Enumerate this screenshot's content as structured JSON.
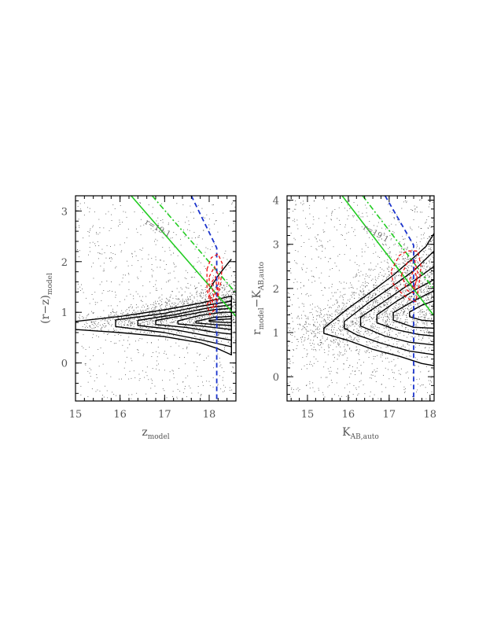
{
  "chart_data": [
    {
      "type": "scatter",
      "id": "left",
      "xlabel_main": "z",
      "xlabel_sub": "model",
      "ylabel_main": "(r−z)",
      "ylabel_sub": "model",
      "xlim": [
        15,
        18.6
      ],
      "ylim": [
        -0.75,
        3.3
      ],
      "x_ticks": [
        15,
        16,
        17,
        18
      ],
      "y_ticks": [
        0,
        1,
        2,
        3
      ],
      "annotation": "r=19.1",
      "annotation_at": [
        16.55,
        2.75
      ],
      "annotation_angle": 29,
      "scatter": {
        "color": "#555555",
        "points": 2100,
        "band_sigma": 0.13,
        "band_center": [
          [
            15,
            0.75
          ],
          [
            16,
            0.85
          ],
          [
            17,
            0.95
          ],
          [
            18,
            1.05
          ],
          [
            18.6,
            1.1
          ]
        ],
        "band_spread": [
          [
            15,
            0.12
          ],
          [
            16,
            0.16
          ],
          [
            17,
            0.24
          ],
          [
            18,
            0.42
          ],
          [
            18.6,
            0.55
          ]
        ],
        "field_fraction": 0.3,
        "field_y": [
          -0.7,
          3.2
        ]
      },
      "contours": [
        {
          "color": "#000000",
          "points": [
            [
              15,
              0.82
            ],
            [
              16,
              0.92
            ],
            [
              17,
              1.05
            ],
            [
              17.8,
              1.18
            ],
            [
              18.2,
              1.26
            ],
            [
              18.5,
              1.32
            ],
            [
              18.5,
              0.16
            ],
            [
              18.2,
              0.28
            ],
            [
              17.8,
              0.4
            ],
            [
              17,
              0.52
            ],
            [
              16,
              0.6
            ],
            [
              15,
              0.66
            ]
          ]
        },
        {
          "color": "#000000",
          "points": [
            [
              15.9,
              0.85
            ],
            [
              17,
              0.98
            ],
            [
              17.8,
              1.12
            ],
            [
              18.5,
              1.22
            ],
            [
              18.5,
              0.32
            ],
            [
              17.8,
              0.46
            ],
            [
              17,
              0.6
            ],
            [
              15.9,
              0.72
            ]
          ]
        },
        {
          "color": "#000000",
          "points": [
            [
              16.4,
              0.84
            ],
            [
              17.2,
              0.95
            ],
            [
              18,
              1.09
            ],
            [
              18.5,
              1.15
            ],
            [
              18.5,
              0.45
            ],
            [
              18,
              0.53
            ],
            [
              17.2,
              0.66
            ],
            [
              16.4,
              0.74
            ]
          ]
        },
        {
          "color": "#000000",
          "points": [
            [
              16.8,
              0.84
            ],
            [
              17.5,
              0.95
            ],
            [
              18.1,
              1.05
            ],
            [
              18.5,
              1.08
            ],
            [
              18.5,
              0.57
            ],
            [
              18.1,
              0.61
            ],
            [
              17.5,
              0.7
            ],
            [
              16.8,
              0.76
            ]
          ]
        },
        {
          "color": "#000000",
          "points": [
            [
              17.3,
              0.83
            ],
            [
              17.8,
              0.94
            ],
            [
              18.3,
              1.0
            ],
            [
              18.5,
              1.0
            ],
            [
              18.5,
              0.66
            ],
            [
              18.3,
              0.68
            ],
            [
              17.8,
              0.73
            ],
            [
              17.3,
              0.77
            ]
          ]
        },
        {
          "color": "#000000",
          "points": [
            [
              17.7,
              0.82
            ],
            [
              18.1,
              0.9
            ],
            [
              18.5,
              0.92
            ],
            [
              18.5,
              0.74
            ],
            [
              18.1,
              0.76
            ],
            [
              17.7,
              0.79
            ]
          ]
        },
        {
          "color": "#000000",
          "points": [
            [
              18.0,
              0.84
            ],
            [
              18.3,
              0.86
            ],
            [
              18.5,
              0.87
            ],
            [
              18.5,
              0.8
            ],
            [
              18.3,
              0.8
            ],
            [
              18.0,
              0.82
            ]
          ]
        },
        {
          "color": "#000000",
          "open": true,
          "points": [
            [
              18.0,
              1.45
            ],
            [
              18.2,
              1.72
            ],
            [
              18.45,
              2.0
            ],
            [
              18.5,
              2.05
            ]
          ]
        }
      ],
      "red_contours": [
        {
          "color": "#ee1111",
          "dash": "4 3",
          "points": [
            [
              17.95,
              1.85
            ],
            [
              18.05,
              2.08
            ],
            [
              18.2,
              2.15
            ],
            [
              18.3,
              1.95
            ],
            [
              18.25,
              1.55
            ],
            [
              18.15,
              1.1
            ],
            [
              18.05,
              1.1
            ],
            [
              17.95,
              1.45
            ]
          ]
        },
        {
          "color": "#ee1111",
          "dash": "4 3",
          "points": [
            [
              18.0,
              1.7
            ],
            [
              18.12,
              1.9
            ],
            [
              18.22,
              1.7
            ],
            [
              18.18,
              1.3
            ],
            [
              18.08,
              1.2
            ],
            [
              18.0,
              1.35
            ]
          ]
        },
        {
          "color": "#ee1111",
          "dash": "4 3",
          "points": [
            [
              18.06,
              1.6
            ],
            [
              18.14,
              1.7
            ],
            [
              18.18,
              1.45
            ],
            [
              18.1,
              1.3
            ]
          ]
        },
        {
          "color": "#ee1111",
          "dash": "4 3",
          "points": [
            [
              17.95,
              1.15
            ],
            [
              18.05,
              1.3
            ],
            [
              18.12,
              1.05
            ],
            [
              18.02,
              0.95
            ]
          ]
        }
      ],
      "lines": [
        {
          "color": "#22cc22",
          "dash": "",
          "width": 1.6,
          "points": [
            [
              16.25,
              3.3
            ],
            [
              18.6,
              0.92
            ]
          ]
        },
        {
          "color": "#22cc22",
          "dash": "7 3 2 3",
          "width": 1.6,
          "points": [
            [
              16.72,
              3.3
            ],
            [
              18.6,
              1.38
            ]
          ]
        },
        {
          "color": "#1a33cc",
          "dash": "6 4",
          "width": 1.8,
          "points": [
            [
              17.6,
              3.3
            ],
            [
              18.17,
              2.27
            ],
            [
              18.17,
              -0.75
            ]
          ]
        }
      ]
    },
    {
      "type": "scatter",
      "id": "right",
      "xlabel_main": "K",
      "xlabel_sub": "AB,auto",
      "ylabel_main": "r",
      "ylabel_sub": "model",
      "ylabel_main2": "−K",
      "ylabel_sub2": "AB,auto",
      "xlim": [
        14.5,
        18.1
      ],
      "ylim": [
        -0.55,
        4.1
      ],
      "x_ticks": [
        15,
        16,
        17,
        18
      ],
      "y_ticks": [
        0,
        1,
        2,
        3,
        4
      ],
      "annotation": "r=19.1",
      "annotation_at": [
        16.35,
        3.35
      ],
      "annotation_angle": 29,
      "scatter": {
        "color": "#555555",
        "points": 2600,
        "band_sigma": 0.2,
        "band_center": [
          [
            14.5,
            0.95
          ],
          [
            15.5,
            1.1
          ],
          [
            16.5,
            1.5
          ],
          [
            17.5,
            1.9
          ],
          [
            18.1,
            2.05
          ]
        ],
        "band_spread": [
          [
            14.5,
            0.35
          ],
          [
            15.5,
            0.45
          ],
          [
            16.5,
            0.8
          ],
          [
            17.5,
            1.1
          ],
          [
            18.1,
            1.2
          ]
        ],
        "field_fraction": 0.3,
        "field_y": [
          -0.5,
          4.05
        ]
      },
      "contours": [
        {
          "color": "#000000",
          "points": [
            [
              15.4,
              1.1
            ],
            [
              16,
              1.55
            ],
            [
              16.6,
              1.95
            ],
            [
              17.1,
              2.3
            ],
            [
              17.6,
              2.7
            ],
            [
              17.9,
              2.95
            ],
            [
              18.1,
              3.25
            ],
            [
              18.1,
              0.25
            ],
            [
              17.8,
              0.3
            ],
            [
              17.3,
              0.45
            ],
            [
              16.6,
              0.62
            ],
            [
              16.0,
              0.82
            ],
            [
              15.4,
              0.98
            ]
          ]
        },
        {
          "color": "#000000",
          "points": [
            [
              15.9,
              1.25
            ],
            [
              16.5,
              1.68
            ],
            [
              17.0,
              2.0
            ],
            [
              17.6,
              2.4
            ],
            [
              18.1,
              2.85
            ],
            [
              18.1,
              0.5
            ],
            [
              17.5,
              0.58
            ],
            [
              16.8,
              0.76
            ],
            [
              16.2,
              0.95
            ],
            [
              15.9,
              1.1
            ]
          ]
        },
        {
          "color": "#000000",
          "points": [
            [
              16.3,
              1.35
            ],
            [
              16.9,
              1.72
            ],
            [
              17.5,
              2.1
            ],
            [
              18.1,
              2.5
            ],
            [
              18.1,
              0.72
            ],
            [
              17.5,
              0.78
            ],
            [
              16.9,
              0.92
            ],
            [
              16.3,
              1.15
            ]
          ]
        },
        {
          "color": "#000000",
          "points": [
            [
              16.7,
              1.4
            ],
            [
              17.2,
              1.72
            ],
            [
              17.7,
              2.0
            ],
            [
              18.1,
              2.2
            ],
            [
              18.1,
              0.92
            ],
            [
              17.7,
              0.96
            ],
            [
              17.2,
              1.06
            ],
            [
              16.7,
              1.22
            ]
          ]
        },
        {
          "color": "#000000",
          "points": [
            [
              17.1,
              1.45
            ],
            [
              17.6,
              1.72
            ],
            [
              18.1,
              1.95
            ],
            [
              18.1,
              1.1
            ],
            [
              17.6,
              1.12
            ],
            [
              17.1,
              1.28
            ]
          ]
        },
        {
          "color": "#000000",
          "points": [
            [
              17.5,
              1.47
            ],
            [
              17.8,
              1.62
            ],
            [
              18.1,
              1.72
            ],
            [
              18.1,
              1.26
            ],
            [
              17.8,
              1.28
            ],
            [
              17.5,
              1.36
            ]
          ]
        }
      ],
      "red_contours": [
        {
          "color": "#ee1111",
          "dash": "4 3",
          "points": [
            [
              17.05,
              2.4
            ],
            [
              17.25,
              2.75
            ],
            [
              17.45,
              2.85
            ],
            [
              17.7,
              2.85
            ],
            [
              17.78,
              2.5
            ],
            [
              17.72,
              2.0
            ],
            [
              17.65,
              1.7
            ],
            [
              17.5,
              1.75
            ],
            [
              17.3,
              1.9
            ],
            [
              17.1,
              2.1
            ]
          ]
        },
        {
          "color": "#ee1111",
          "dash": "4 3",
          "points": [
            [
              17.3,
              2.3
            ],
            [
              17.45,
              2.6
            ],
            [
              17.62,
              2.65
            ],
            [
              17.7,
              2.35
            ],
            [
              17.6,
              1.9
            ],
            [
              17.45,
              1.95
            ]
          ]
        },
        {
          "color": "#ee1111",
          "dash": "4 3",
          "points": [
            [
              17.5,
              2.2
            ],
            [
              17.62,
              2.45
            ],
            [
              17.68,
              2.2
            ],
            [
              17.6,
              2.0
            ]
          ]
        }
      ],
      "lines": [
        {
          "color": "#22cc22",
          "dash": "",
          "width": 1.6,
          "points": [
            [
              15.85,
              4.1
            ],
            [
              18.1,
              1.38
            ]
          ]
        },
        {
          "color": "#22cc22",
          "dash": "7 3 2 3",
          "width": 1.6,
          "points": [
            [
              16.35,
              4.1
            ],
            [
              18.1,
              1.98
            ]
          ]
        },
        {
          "color": "#1a33cc",
          "dash": "6 4",
          "width": 1.8,
          "points": [
            [
              16.9,
              4.1
            ],
            [
              17.6,
              2.98
            ],
            [
              17.6,
              -0.55
            ]
          ]
        }
      ]
    }
  ]
}
